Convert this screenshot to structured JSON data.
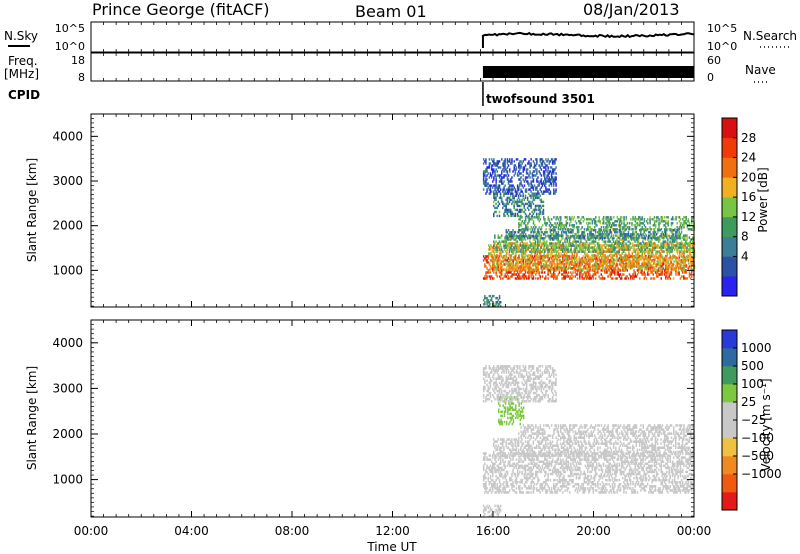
{
  "header": {
    "station": "Prince George (fitACF)",
    "beam": "Beam 01",
    "date": "08/Jan/2013"
  },
  "strips": {
    "sky": {
      "left_label": "N.Sky",
      "right_label": "N.Search",
      "left_ticks": [
        "10^5",
        "10^0"
      ],
      "right_ticks": [
        "10^5",
        "10^0"
      ]
    },
    "freq": {
      "left_label_1": "Freq.",
      "left_label_2": "[MHz]",
      "right_label": "Nave",
      "left_ticks": [
        "18",
        "8"
      ],
      "right_ticks": [
        "60",
        "0"
      ]
    },
    "cpid": {
      "label": "CPID",
      "program": "twofsound 3501",
      "start_hour": 15.6
    }
  },
  "axes": {
    "xlabel": "Time UT",
    "xticks": [
      "00:00",
      "04:00",
      "08:00",
      "12:00",
      "16:00",
      "20:00",
      "00:00"
    ],
    "xlim": [
      0,
      24
    ],
    "ylabel": "Slant Range [km]",
    "ylim": [
      180,
      4500
    ],
    "yticks": [
      "1000",
      "2000",
      "3000",
      "4000"
    ]
  },
  "colors": {
    "power": [
      "#2a23f0",
      "#2c52a6",
      "#3c7d98",
      "#3f9a5e",
      "#78c444",
      "#f0b020",
      "#f07010",
      "#f03a0a",
      "#d81010"
    ],
    "velocity": [
      "#e21a1a",
      "#f05a10",
      "#f08a20",
      "#f0c040",
      "#c8c8c8",
      "#c8c8c8",
      "#7cc840",
      "#3f9a5e",
      "#2c6aa0",
      "#2a3ad8"
    ]
  },
  "chart_data": [
    {
      "type": "heatmap",
      "name": "power",
      "colorbar_label": "Power [dB]",
      "colorbar_ticks": [
        "28",
        "24",
        "20",
        "16",
        "12",
        "8",
        "4"
      ],
      "colorbar_range": [
        0,
        32
      ],
      "x_unit": "hour UT",
      "y_unit": "km",
      "regions": [
        {
          "t0": 15.6,
          "t1": 24.0,
          "r0": 800,
          "r1": 1300,
          "value": 26
        },
        {
          "t0": 15.8,
          "t1": 24.0,
          "r0": 1000,
          "r1": 1600,
          "value": 20
        },
        {
          "t0": 16.0,
          "t1": 24.0,
          "r0": 1400,
          "r1": 1800,
          "value": 14
        },
        {
          "t0": 16.5,
          "t1": 23.5,
          "r0": 1700,
          "r1": 1900,
          "value": 10
        },
        {
          "t0": 17.0,
          "t1": 24.0,
          "r0": 1900,
          "r1": 2200,
          "value": 13
        },
        {
          "t0": 16.0,
          "t1": 18.0,
          "r0": 2200,
          "r1": 2700,
          "value": 10
        },
        {
          "t0": 15.6,
          "t1": 18.5,
          "r0": 2700,
          "r1": 3500,
          "value": 6
        },
        {
          "t0": 15.6,
          "t1": 16.3,
          "r0": 180,
          "r1": 450,
          "value": 10
        }
      ]
    },
    {
      "type": "heatmap",
      "name": "velocity",
      "colorbar_label": "Velocity [m s⁻¹]",
      "colorbar_ticks": [
        "1000",
        "500",
        "100",
        "25",
        "−25",
        "−100",
        "−500",
        "−1000"
      ],
      "colorbar_range": [
        -1200,
        1200
      ],
      "x_unit": "hour UT",
      "y_unit": "km",
      "regions": [
        {
          "t0": 15.6,
          "t1": 24.0,
          "r0": 700,
          "r1": 1600,
          "value": 0
        },
        {
          "t0": 16.0,
          "t1": 24.0,
          "r0": 1500,
          "r1": 1900,
          "value": 0
        },
        {
          "t0": 17.0,
          "t1": 24.0,
          "r0": 1900,
          "r1": 2200,
          "value": 40
        },
        {
          "t0": 16.2,
          "t1": 17.2,
          "r0": 2200,
          "r1": 2800,
          "value": 300
        },
        {
          "t0": 15.6,
          "t1": 18.5,
          "r0": 2700,
          "r1": 3500,
          "value": 60
        },
        {
          "t0": 15.6,
          "t1": 16.3,
          "r0": 180,
          "r1": 450,
          "value": 80
        }
      ]
    }
  ]
}
